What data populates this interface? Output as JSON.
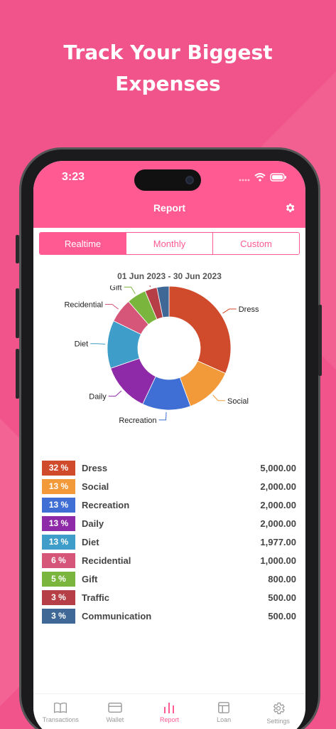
{
  "headline": {
    "line1": "Track Your Biggest",
    "line2": "Expenses"
  },
  "status_bar": {
    "time": "3:23"
  },
  "header": {
    "title": "Report"
  },
  "segments": [
    {
      "label": "Realtime",
      "active": true
    },
    {
      "label": "Monthly",
      "active": false
    },
    {
      "label": "Custom",
      "active": false
    }
  ],
  "date_range": "01 Jun 2023 - 30 Jun 2023",
  "chart_data": {
    "type": "pie",
    "categories": [
      "Dress",
      "Social",
      "Recreation",
      "Daily",
      "Diet",
      "Recidential",
      "Gift",
      "Traffic",
      "Communication"
    ],
    "values": [
      5000,
      2000,
      2000,
      2000,
      1977,
      1000,
      800,
      500,
      500
    ],
    "colors": [
      "#d04a2c",
      "#f29a3a",
      "#3f6fd4",
      "#8e2aa8",
      "#3e9ec9",
      "#d6567a",
      "#7ab63d",
      "#b63e46",
      "#3f6896"
    ]
  },
  "legend": [
    {
      "pct": "32 %",
      "name": "Dress",
      "amount": "5,000.00",
      "color": "#d04a2c"
    },
    {
      "pct": "13 %",
      "name": "Social",
      "amount": "2,000.00",
      "color": "#f29a3a"
    },
    {
      "pct": "13 %",
      "name": "Recreation",
      "amount": "2,000.00",
      "color": "#3f6fd4"
    },
    {
      "pct": "13 %",
      "name": "Daily",
      "amount": "2,000.00",
      "color": "#8e2aa8"
    },
    {
      "pct": "13 %",
      "name": "Diet",
      "amount": "1,977.00",
      "color": "#3e9ec9"
    },
    {
      "pct": "6 %",
      "name": "Recidential",
      "amount": "1,000.00",
      "color": "#d6567a"
    },
    {
      "pct": "5 %",
      "name": "Gift",
      "amount": "800.00",
      "color": "#7ab63d"
    },
    {
      "pct": "3 %",
      "name": "Traffic",
      "amount": "500.00",
      "color": "#b63e46"
    },
    {
      "pct": "3 %",
      "name": "Communication",
      "amount": "500.00",
      "color": "#3f6896"
    }
  ],
  "tabs": [
    {
      "label": "Transactions",
      "icon": "book-icon",
      "active": false
    },
    {
      "label": "Wallet",
      "icon": "wallet-icon",
      "active": false
    },
    {
      "label": "Report",
      "icon": "bar-chart-icon",
      "active": true
    },
    {
      "label": "Loan",
      "icon": "layout-icon",
      "active": false
    },
    {
      "label": "Settings",
      "icon": "gear-icon",
      "active": false
    }
  ],
  "colors": {
    "brand": "#ff5a92",
    "background": "#f0548a"
  }
}
